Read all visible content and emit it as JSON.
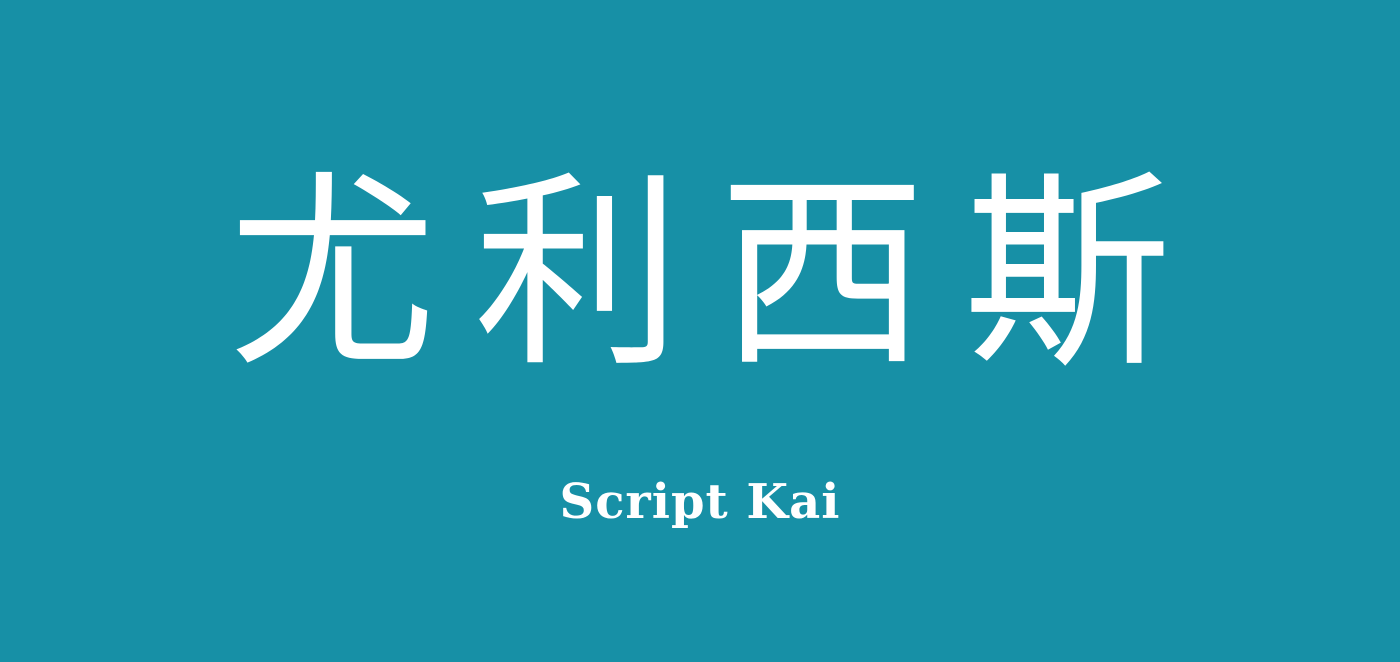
{
  "background_color": "#1790a6",
  "text_color": "#ffffff",
  "headline": {
    "chars": [
      "尤",
      "利",
      "西",
      "斯"
    ]
  },
  "caption": "Script Kai"
}
